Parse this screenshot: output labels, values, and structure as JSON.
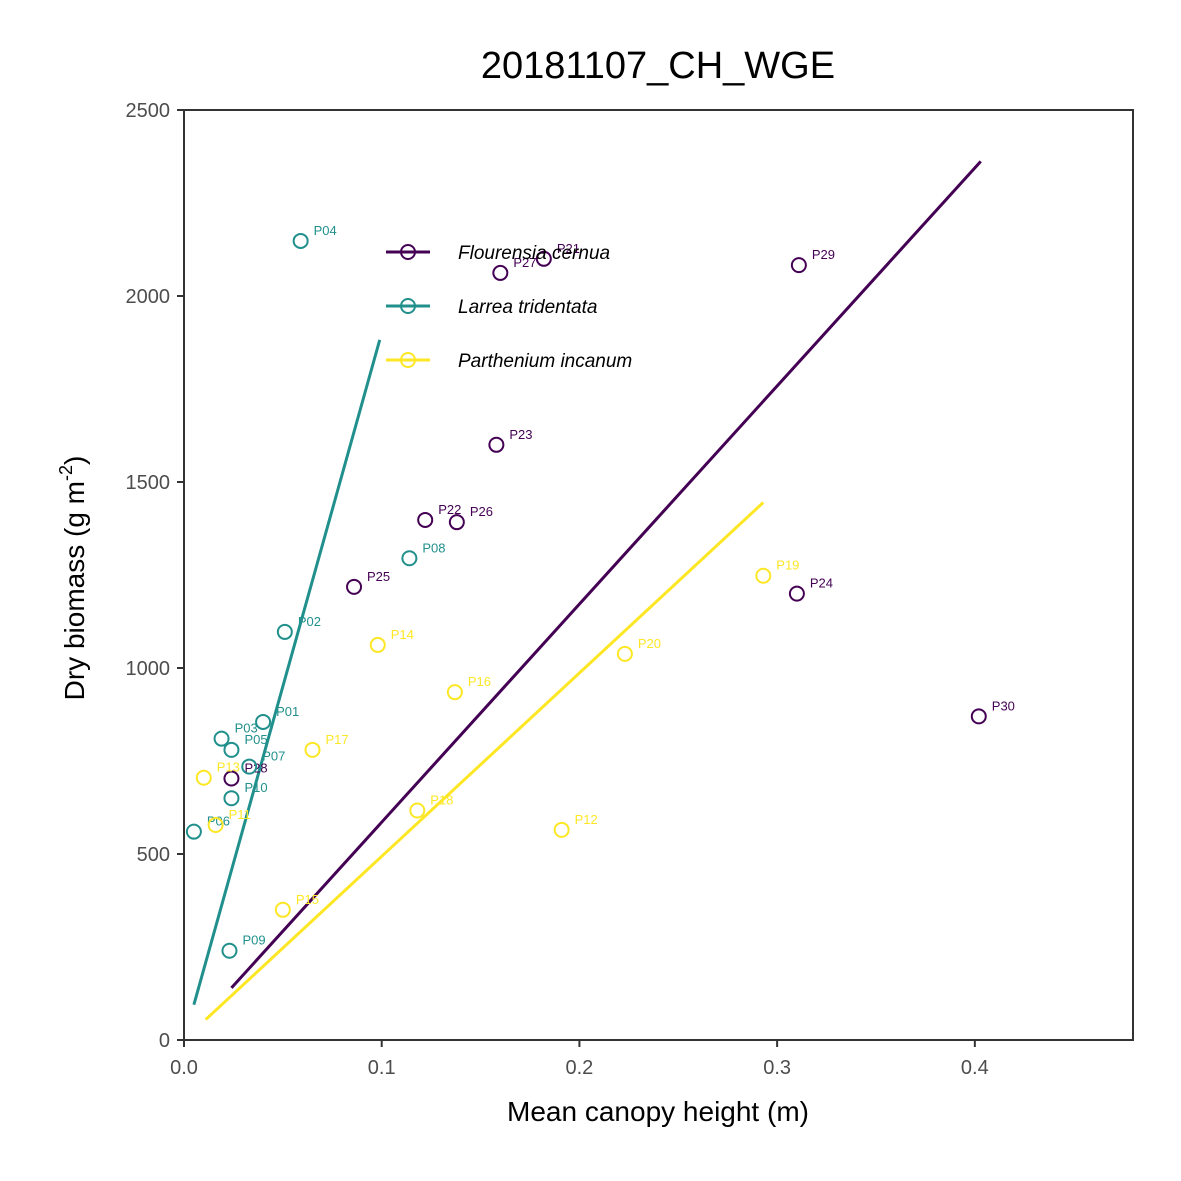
{
  "chart_data": {
    "type": "scatter",
    "title": "20181107_CH_WGE",
    "xlabel": "Mean canopy height (m)",
    "ylabel": "Dry biomass (g m",
    "ylabel_superscript": "-2",
    "ylabel_suffix": ")",
    "xlim": [
      0.0,
      0.48
    ],
    "ylim": [
      0,
      2500
    ],
    "x_ticks": [
      0.0,
      0.1,
      0.2,
      0.3,
      0.4
    ],
    "x_tick_labels": [
      "0.0",
      "0.1",
      "0.2",
      "0.3",
      "0.4"
    ],
    "y_ticks": [
      0,
      500,
      1000,
      1500,
      2000,
      2500
    ],
    "y_tick_labels": [
      "0",
      "500",
      "1000",
      "1500",
      "2000",
      "2500"
    ],
    "grid": false,
    "legend_position": "top-left inside",
    "series": [
      {
        "name": "Flourensia cernua",
        "color": "#440154",
        "points": [
          {
            "label": "P21",
            "x": 0.182,
            "y": 2100
          },
          {
            "label": "P22",
            "x": 0.122,
            "y": 1398
          },
          {
            "label": "P23",
            "x": 0.158,
            "y": 1600
          },
          {
            "label": "P24",
            "x": 0.31,
            "y": 1200
          },
          {
            "label": "P25",
            "x": 0.086,
            "y": 1218
          },
          {
            "label": "P26",
            "x": 0.138,
            "y": 1392
          },
          {
            "label": "P27",
            "x": 0.16,
            "y": 2062
          },
          {
            "label": "P28",
            "x": 0.024,
            "y": 703
          },
          {
            "label": "P29",
            "x": 0.311,
            "y": 2083
          },
          {
            "label": "P30",
            "x": 0.402,
            "y": 870
          }
        ],
        "fit": {
          "x": [
            0.024,
            0.403
          ],
          "y": [
            140,
            2362
          ]
        }
      },
      {
        "name": "Larrea tridentata",
        "color": "#21908C",
        "points": [
          {
            "label": "P01",
            "x": 0.04,
            "y": 855
          },
          {
            "label": "P02",
            "x": 0.051,
            "y": 1097
          },
          {
            "label": "P03",
            "x": 0.019,
            "y": 810
          },
          {
            "label": "P04",
            "x": 0.059,
            "y": 2148
          },
          {
            "label": "P05",
            "x": 0.024,
            "y": 780
          },
          {
            "label": "P06",
            "x": 0.005,
            "y": 560
          },
          {
            "label": "P07",
            "x": 0.033,
            "y": 735
          },
          {
            "label": "P08",
            "x": 0.114,
            "y": 1295
          },
          {
            "label": "P09",
            "x": 0.023,
            "y": 240
          },
          {
            "label": "P10",
            "x": 0.024,
            "y": 650
          }
        ],
        "fit": {
          "x": [
            0.005,
            0.099
          ],
          "y": [
            95,
            1882
          ]
        }
      },
      {
        "name": "Parthenium incanum",
        "color": "#FDE725",
        "points": [
          {
            "label": "P11",
            "x": 0.016,
            "y": 578
          },
          {
            "label": "P12",
            "x": 0.191,
            "y": 565
          },
          {
            "label": "P13",
            "x": 0.01,
            "y": 705
          },
          {
            "label": "P14",
            "x": 0.098,
            "y": 1062
          },
          {
            "label": "P15",
            "x": 0.05,
            "y": 350
          },
          {
            "label": "P16",
            "x": 0.137,
            "y": 935
          },
          {
            "label": "P17",
            "x": 0.065,
            "y": 780
          },
          {
            "label": "P18",
            "x": 0.118,
            "y": 617
          },
          {
            "label": "P19",
            "x": 0.293,
            "y": 1248
          },
          {
            "label": "P20",
            "x": 0.223,
            "y": 1038
          }
        ],
        "fit": {
          "x": [
            0.011,
            0.293
          ],
          "y": [
            55,
            1445
          ]
        }
      }
    ]
  }
}
